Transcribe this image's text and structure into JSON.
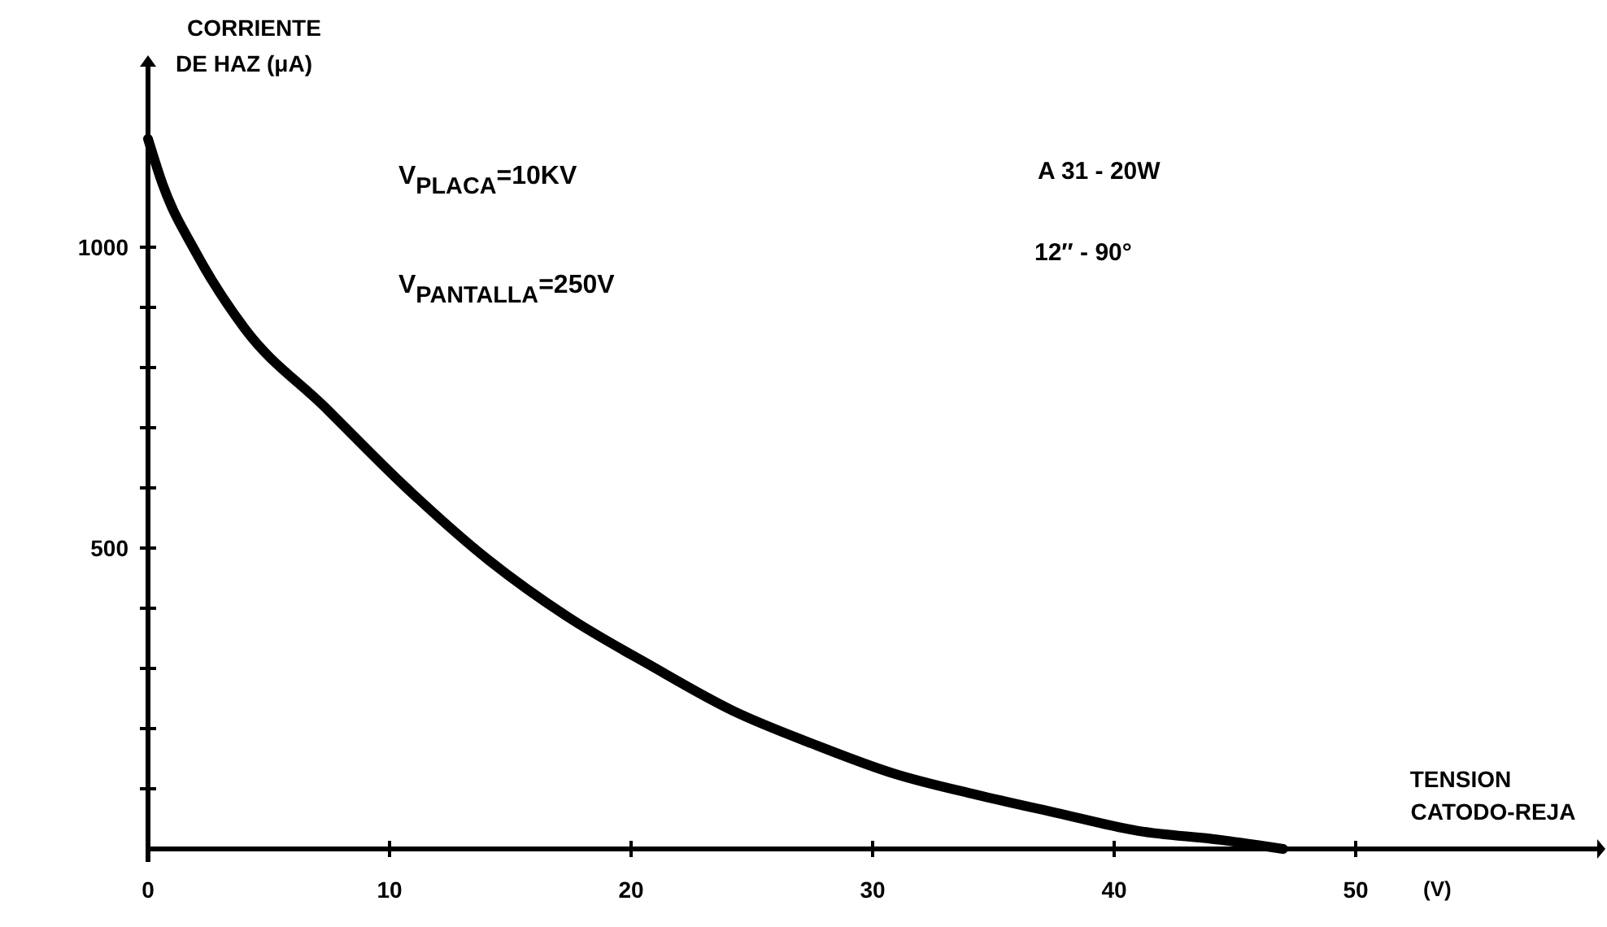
{
  "chart_data": {
    "type": "line",
    "xlabel": "TENSION CATODO-REJA",
    "ylabel": "CORRIENTE DE HAZ (μA)",
    "annotations": [
      "V$_{PLACA}$=10KV",
      "V$_{PANTALLA}$=250V",
      "A 31 - 20W",
      "12″ - 90°",
      "(V)"
    ],
    "x": [
      0,
      0.6,
      2,
      4,
      7.3,
      10.7,
      14.1,
      17.4,
      20.8,
      24.2,
      27.5,
      30.9,
      34.3,
      37.6,
      41,
      44.4,
      47
    ],
    "series": [
      {
        "color": "#000000",
        "values": [
          1180,
          1105,
          990,
          865,
          735,
          600,
          480,
          385,
          305,
          230,
          175,
          125,
          90,
          60,
          30,
          15,
          0
        ]
      }
    ],
    "xlim": [
      0,
      60
    ],
    "ylim": [
      0,
      1300
    ],
    "xticks": [
      0,
      10,
      20,
      30,
      40,
      50
    ],
    "yticks": [
      {
        "value": 100,
        "label": null
      },
      {
        "value": 200,
        "label": null
      },
      {
        "value": 300,
        "label": null
      },
      {
        "value": 400,
        "label": null
      },
      500,
      {
        "value": 600,
        "label": null
      },
      {
        "value": 700,
        "label": null
      },
      {
        "value": 800,
        "label": null
      },
      {
        "value": 900,
        "label": null
      },
      1000
    ],
    "grid": false,
    "marker": "none",
    "line_style": "solid"
  }
}
